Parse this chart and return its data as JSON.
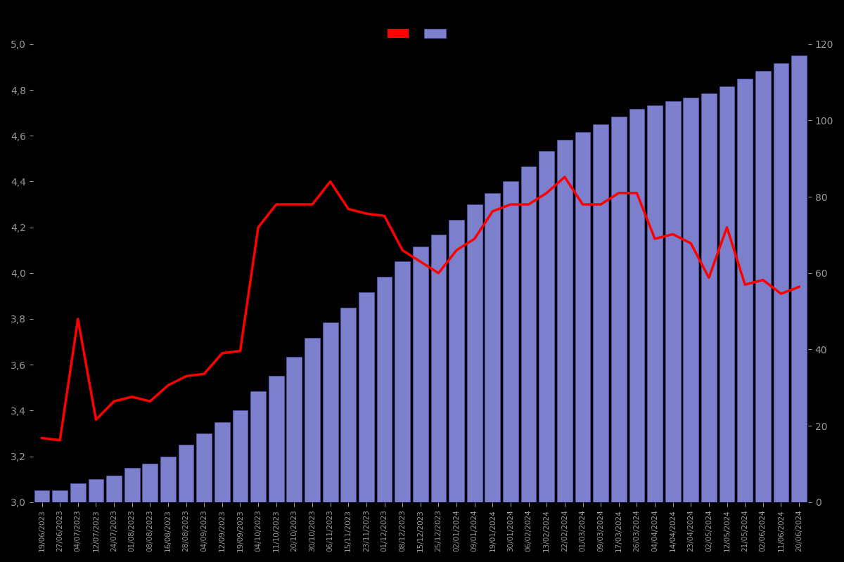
{
  "dates": [
    "19/06/2023",
    "27/06/2023",
    "04/07/2023",
    "12/07/2023",
    "24/07/2023",
    "01/08/2023",
    "08/08/2023",
    "16/08/2023",
    "28/08/2023",
    "04/09/2023",
    "12/09/2023",
    "19/09/2023",
    "04/10/2023",
    "11/10/2023",
    "20/10/2023",
    "30/10/2023",
    "06/11/2023",
    "15/11/2023",
    "23/11/2023",
    "01/12/2023",
    "08/12/2023",
    "15/12/2023",
    "25/12/2023",
    "02/01/2024",
    "09/01/2024",
    "19/01/2024",
    "30/01/2024",
    "06/02/2024",
    "13/02/2024",
    "22/02/2024",
    "01/03/2024",
    "09/03/2024",
    "17/03/2024",
    "26/03/2024",
    "04/04/2024",
    "14/04/2024",
    "23/04/2024",
    "02/05/2024",
    "12/05/2024",
    "21/05/2024",
    "02/06/2024",
    "11/06/2024",
    "20/06/2024"
  ],
  "bar_values": [
    3,
    3,
    5,
    6,
    7,
    9,
    10,
    12,
    15,
    18,
    21,
    24,
    29,
    33,
    38,
    43,
    47,
    51,
    55,
    59,
    63,
    67,
    70,
    74,
    78,
    81,
    84,
    88,
    92,
    95,
    97,
    99,
    101,
    103,
    104,
    105,
    106,
    107,
    109,
    111,
    113,
    115,
    117
  ],
  "line_values": [
    3.28,
    3.27,
    3.8,
    3.36,
    3.44,
    3.46,
    3.44,
    3.51,
    3.55,
    3.56,
    3.65,
    3.66,
    4.2,
    4.3,
    4.3,
    4.3,
    4.4,
    4.28,
    4.26,
    4.25,
    4.1,
    4.05,
    4.0,
    4.1,
    4.15,
    4.27,
    4.3,
    4.3,
    4.35,
    4.42,
    4.3,
    4.3,
    4.35,
    4.35,
    4.15,
    4.17,
    4.13,
    3.98,
    4.2,
    3.95,
    3.97,
    3.91,
    3.94
  ],
  "bar_color": "#7b7fcc",
  "bar_edge_color": "#5555bb",
  "line_color": "#ff0000",
  "background_color": "#000000",
  "text_color": "#999999",
  "left_ylim": [
    3.0,
    5.0
  ],
  "right_ylim": [
    0,
    120
  ],
  "left_yticks": [
    3.0,
    3.2,
    3.4,
    3.6,
    3.8,
    4.0,
    4.2,
    4.4,
    4.6,
    4.8,
    5.0
  ],
  "left_yticklabels": [
    "3,0",
    "3,2",
    "3,4",
    "3,6",
    "3,8",
    "4,0",
    "4,2",
    "4,4",
    "4,6",
    "4,8",
    "5,0"
  ],
  "right_yticks": [
    0,
    20,
    40,
    60,
    80,
    100,
    120
  ],
  "line_width": 2.5
}
